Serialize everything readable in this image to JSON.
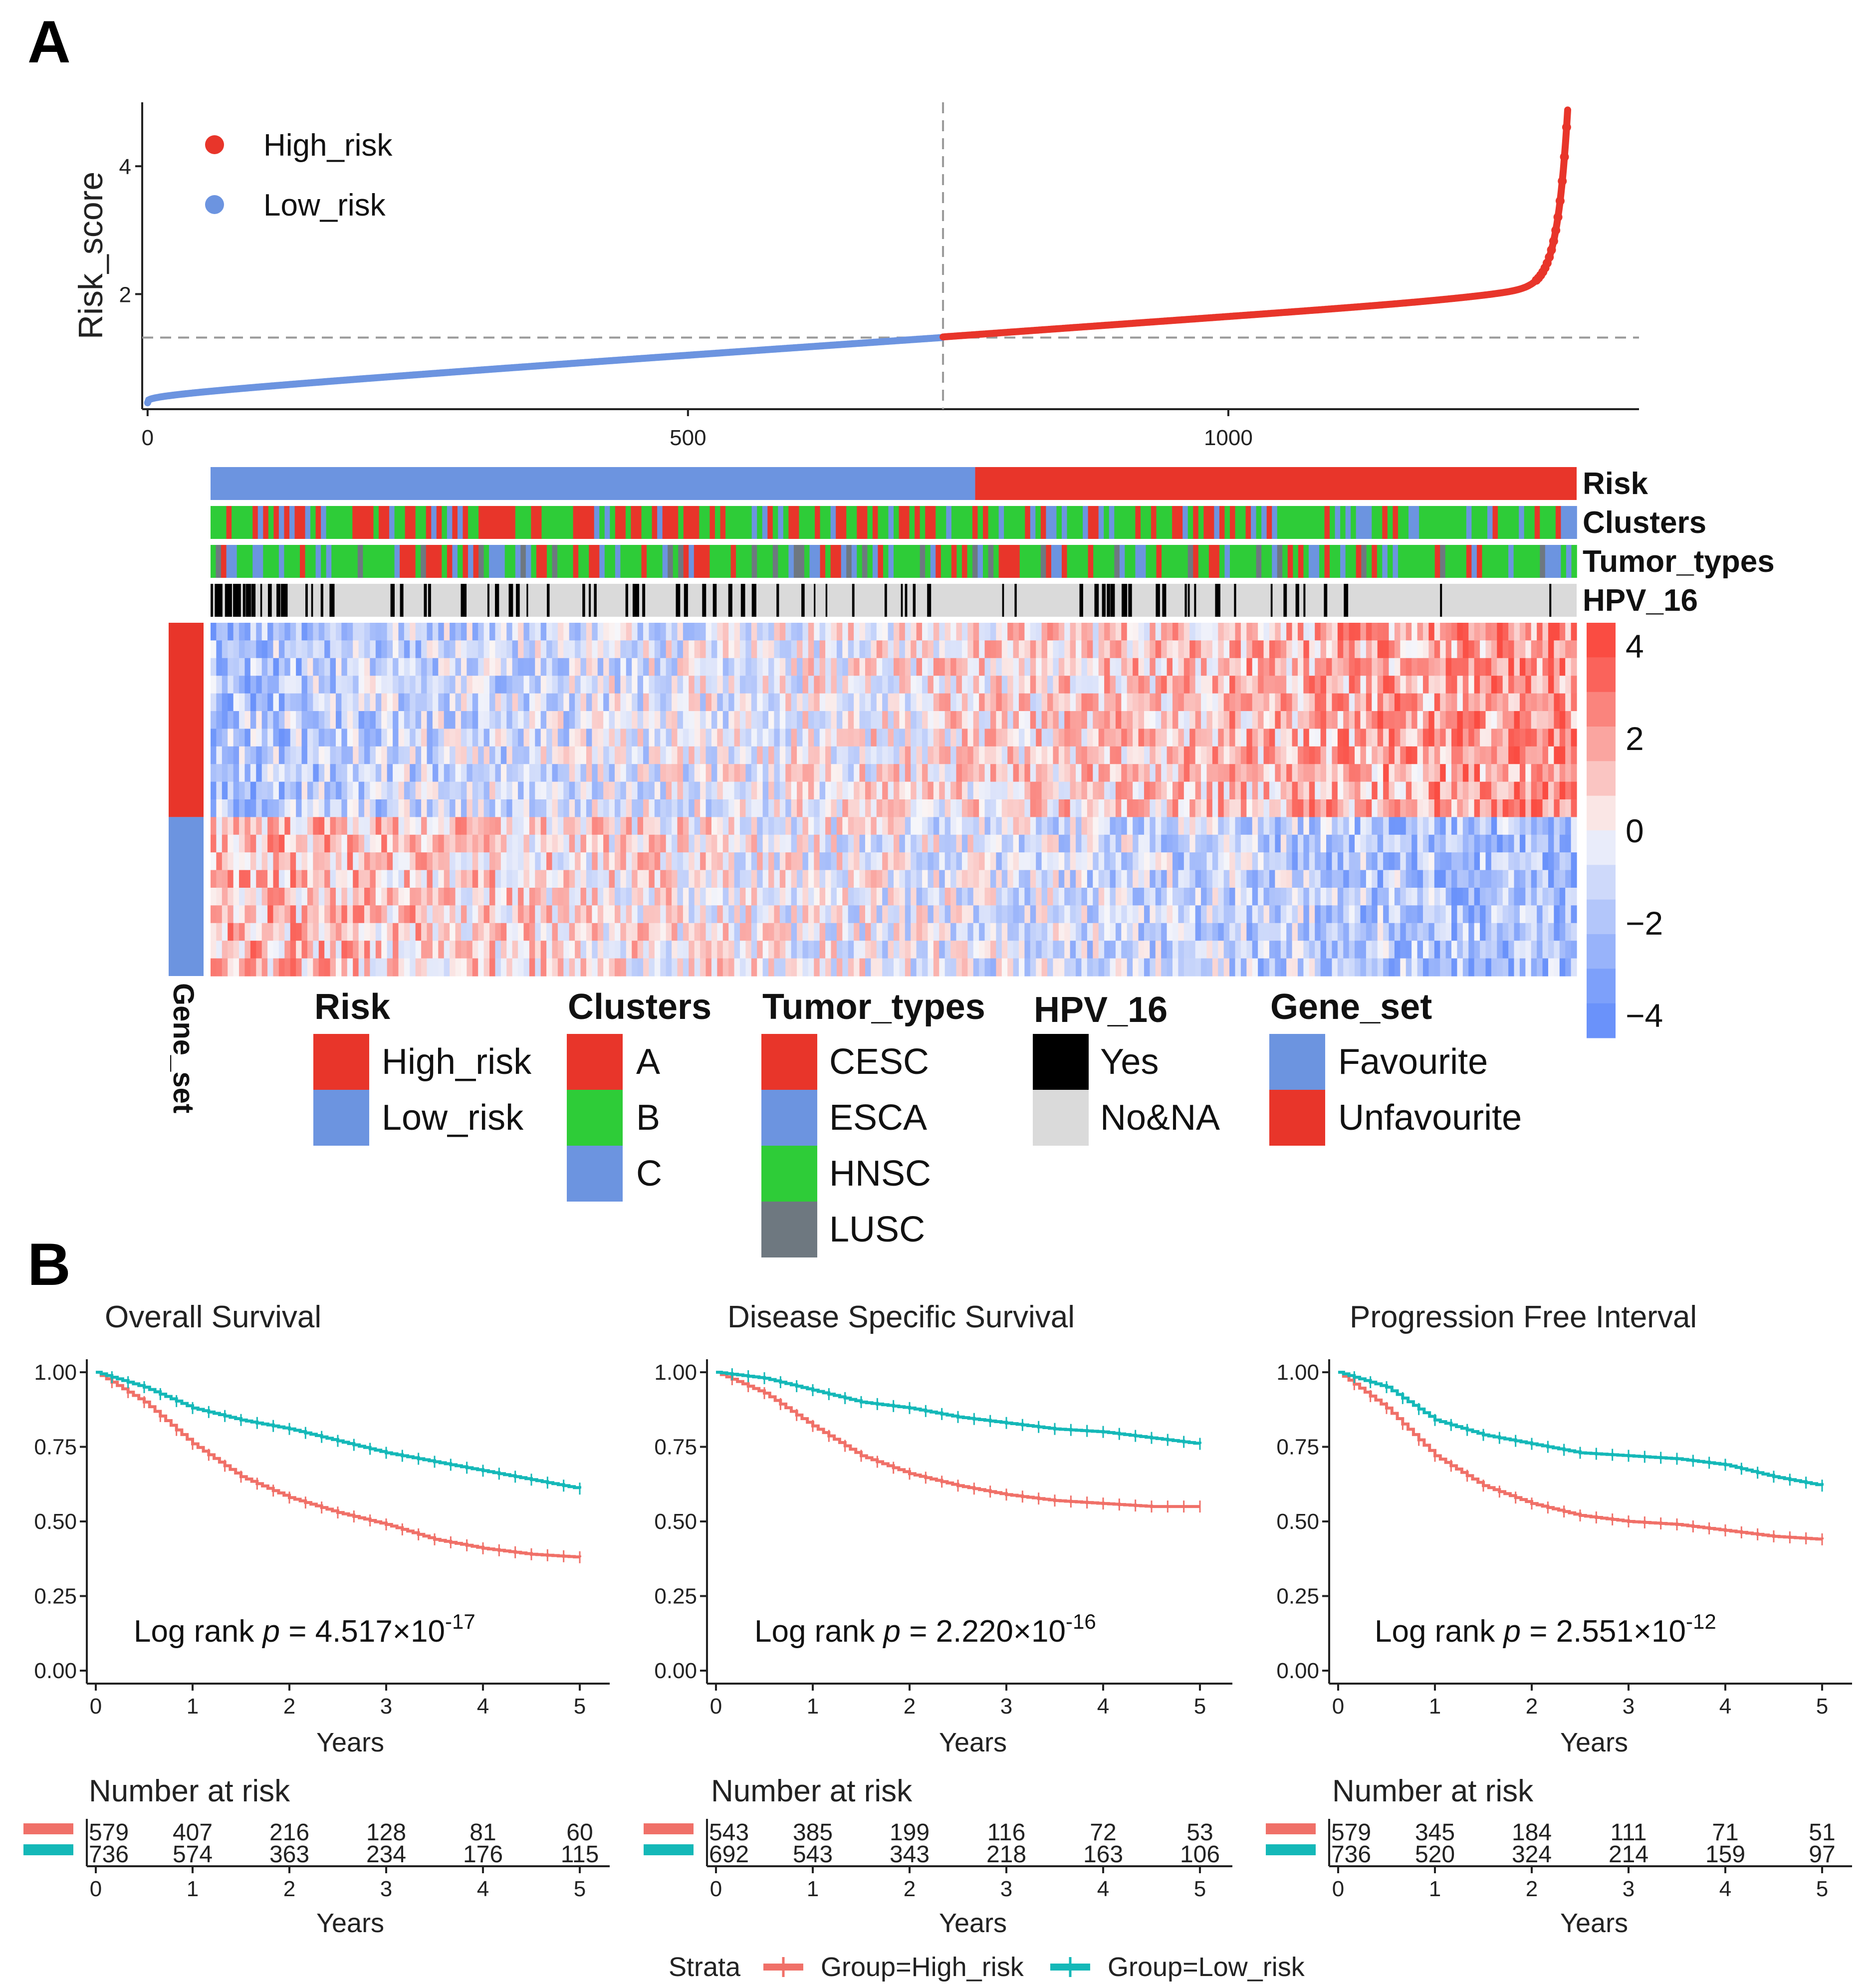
{
  "panel_labels": {
    "a": "A",
    "b": "B"
  },
  "colors": {
    "high": "#E8352A",
    "low": "#6C94E0",
    "cl_a": "#E8352A",
    "cl_b": "#2ECC38",
    "cl_c": "#6C94E0",
    "esca": "#6C94E0",
    "hnsc": "#2ECC38",
    "lusc": "#6E7880",
    "yes": "#000000",
    "no": "#DADADA",
    "km_high": "#F07068",
    "km_low": "#14B8B8"
  },
  "chart_data": [
    {
      "type": "scatter",
      "id": "risk_score",
      "ylabel": "Risk_score",
      "xlim": [
        -5,
        1380
      ],
      "ylim": [
        0.2,
        5.0
      ],
      "xticks": [
        0,
        500,
        1000
      ],
      "yticks": [
        2,
        4
      ],
      "n_samples": 1315,
      "cutoff_index": 736,
      "cutoff_value": 1.32,
      "series": [
        {
          "name": "Low_risk",
          "x_range": [
            0,
            735
          ],
          "start": 0.3,
          "end": 1.32
        },
        {
          "name": "High_risk",
          "x_range": [
            736,
            1314
          ],
          "start": 1.33,
          "end": 4.9
        }
      ],
      "legend": [
        "High_risk",
        "Low_risk"
      ]
    },
    {
      "type": "heatmap",
      "id": "expression_heatmap",
      "annotation_rows": [
        "Risk",
        "Clusters",
        "Tumor_types",
        "HPV_16"
      ],
      "row_annotation": "Gene_set",
      "n_genes_unfavourite": 11,
      "n_genes_favourite": 9,
      "colorbar_ticks": [
        4,
        2,
        0,
        "−2",
        "−4"
      ],
      "colorbar_range": [
        -4.5,
        4.5
      ],
      "legends": [
        {
          "title": "Risk",
          "items": [
            "High_risk",
            "Low_risk"
          ]
        },
        {
          "title": "Clusters",
          "items": [
            "A",
            "B",
            "C"
          ]
        },
        {
          "title": "Tumor_types",
          "items": [
            "CESC",
            "ESCA",
            "HNSC",
            "LUSC"
          ]
        },
        {
          "title": "HPV_16",
          "items": [
            "Yes",
            "No&NA"
          ]
        },
        {
          "title": "Gene_set",
          "items": [
            "Favourite",
            "Unfavourite"
          ]
        }
      ]
    },
    {
      "type": "line",
      "id": "os",
      "title": "Overall Survival",
      "xlabel": "Years",
      "xlim": [
        0,
        5
      ],
      "ylim": [
        0,
        1
      ],
      "yticks": [
        "0.00",
        "0.25",
        "0.50",
        "0.75",
        "1.00"
      ],
      "x": [
        0,
        0.5,
        1,
        1.5,
        2,
        2.5,
        3,
        3.5,
        4,
        4.5,
        5
      ],
      "series": [
        {
          "name": "Group=High_risk",
          "values": [
            1.0,
            0.9,
            0.76,
            0.65,
            0.58,
            0.53,
            0.49,
            0.44,
            0.41,
            0.39,
            0.38
          ]
        },
        {
          "name": "Group=Low_risk",
          "values": [
            1.0,
            0.95,
            0.88,
            0.84,
            0.81,
            0.77,
            0.73,
            0.7,
            0.67,
            0.64,
            0.61
          ]
        }
      ],
      "logrank": {
        "prefix": "Log rank ",
        "p": "p",
        "eq": " = 4.517",
        "times": "×",
        "base": "10",
        "exp": "-17"
      },
      "risk_table": {
        "title": "Number at risk",
        "high": [
          "579",
          "407",
          "216",
          "128",
          "81",
          "60"
        ],
        "low": [
          "736",
          "574",
          "363",
          "234",
          "176",
          "115"
        ]
      }
    },
    {
      "type": "line",
      "id": "dss",
      "title": "Disease Specific Survival",
      "xlabel": "Years",
      "xlim": [
        0,
        5
      ],
      "ylim": [
        0,
        1
      ],
      "yticks": [
        "0.00",
        "0.25",
        "0.50",
        "0.75",
        "1.00"
      ],
      "x": [
        0,
        0.5,
        1,
        1.5,
        2,
        2.5,
        3,
        3.5,
        4,
        4.5,
        5
      ],
      "series": [
        {
          "name": "Group=High_risk",
          "values": [
            1.0,
            0.93,
            0.82,
            0.72,
            0.66,
            0.62,
            0.59,
            0.57,
            0.56,
            0.55,
            0.55
          ]
        },
        {
          "name": "Group=Low_risk",
          "values": [
            1.0,
            0.98,
            0.94,
            0.9,
            0.88,
            0.85,
            0.83,
            0.81,
            0.8,
            0.78,
            0.76
          ]
        }
      ],
      "logrank": {
        "prefix": "Log rank ",
        "p": "p",
        "eq": " = 2.220",
        "times": "×",
        "base": "10",
        "exp": "-16"
      },
      "risk_table": {
        "title": "Number at risk",
        "high": [
          "543",
          "385",
          "199",
          "116",
          "72",
          "53"
        ],
        "low": [
          "692",
          "543",
          "343",
          "218",
          "163",
          "106"
        ]
      }
    },
    {
      "type": "line",
      "id": "pfi",
      "title": "Progression Free Interval",
      "xlabel": "Years",
      "xlim": [
        0,
        5
      ],
      "ylim": [
        0,
        1
      ],
      "yticks": [
        "0.00",
        "0.25",
        "0.50",
        "0.75",
        "1.00"
      ],
      "x": [
        0,
        0.5,
        1,
        1.5,
        2,
        2.5,
        3,
        3.5,
        4,
        4.5,
        5
      ],
      "series": [
        {
          "name": "Group=High_risk",
          "values": [
            1.0,
            0.88,
            0.72,
            0.62,
            0.56,
            0.52,
            0.5,
            0.49,
            0.47,
            0.45,
            0.44
          ]
        },
        {
          "name": "Group=Low_risk",
          "values": [
            1.0,
            0.95,
            0.84,
            0.79,
            0.76,
            0.73,
            0.72,
            0.71,
            0.69,
            0.65,
            0.62
          ]
        }
      ],
      "logrank": {
        "prefix": "Log rank ",
        "p": "p",
        "eq": " = 2.551",
        "times": "×",
        "base": "10",
        "exp": "-12"
      },
      "risk_table": {
        "title": "Number at risk",
        "high": [
          "579",
          "345",
          "184",
          "111",
          "71",
          "51"
        ],
        "low": [
          "736",
          "520",
          "324",
          "214",
          "159",
          "97"
        ]
      }
    }
  ],
  "strata_legend": {
    "title": "Strata",
    "items": [
      "Group=High_risk",
      "Group=Low_risk"
    ]
  }
}
